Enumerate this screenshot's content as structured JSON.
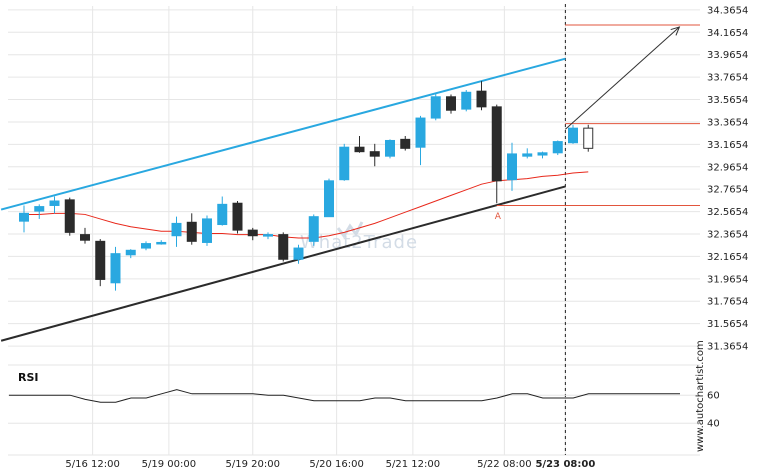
{
  "chart_data": {
    "type": "candlestick",
    "price_axis": {
      "ticks": [
        "34.3654",
        "34.1654",
        "33.9654",
        "33.7654",
        "33.5654",
        "33.3654",
        "33.1654",
        "32.9654",
        "32.7654",
        "32.5654",
        "32.3654",
        "32.1654",
        "31.9654",
        "31.7654",
        "31.5654",
        "31.3654"
      ],
      "ylim": [
        31.25,
        34.4
      ]
    },
    "time_axis": {
      "ticks": [
        "5/16 12:00",
        "5/19 00:00",
        "5/19 20:00",
        "5/20 16:00",
        "5/21 12:00",
        "5/22 08:00",
        "5/23 08:00"
      ],
      "current": "5/23 08:00"
    },
    "candles": [
      {
        "o": 32.48,
        "h": 32.62,
        "l": 32.38,
        "c": 32.55
      },
      {
        "o": 32.57,
        "h": 32.63,
        "l": 32.5,
        "c": 32.61
      },
      {
        "o": 32.62,
        "h": 32.7,
        "l": 32.55,
        "c": 32.66
      },
      {
        "o": 32.67,
        "h": 32.69,
        "l": 32.35,
        "c": 32.38
      },
      {
        "o": 32.36,
        "h": 32.42,
        "l": 32.28,
        "c": 32.31
      },
      {
        "o": 32.3,
        "h": 32.32,
        "l": 31.9,
        "c": 31.96
      },
      {
        "o": 31.93,
        "h": 32.25,
        "l": 31.86,
        "c": 32.19
      },
      {
        "o": 32.18,
        "h": 32.23,
        "l": 32.15,
        "c": 32.22
      },
      {
        "o": 32.24,
        "h": 32.3,
        "l": 32.22,
        "c": 32.28
      },
      {
        "o": 32.29,
        "h": 32.31,
        "l": 32.27,
        "c": 32.29
      },
      {
        "o": 32.35,
        "h": 32.52,
        "l": 32.25,
        "c": 32.46
      },
      {
        "o": 32.47,
        "h": 32.55,
        "l": 32.27,
        "c": 32.3
      },
      {
        "o": 32.29,
        "h": 32.53,
        "l": 32.26,
        "c": 32.5
      },
      {
        "o": 32.45,
        "h": 32.7,
        "l": 32.44,
        "c": 32.63
      },
      {
        "o": 32.64,
        "h": 32.66,
        "l": 32.37,
        "c": 32.4
      },
      {
        "o": 32.4,
        "h": 32.42,
        "l": 32.31,
        "c": 32.35
      },
      {
        "o": 32.35,
        "h": 32.38,
        "l": 32.32,
        "c": 32.36
      },
      {
        "o": 32.36,
        "h": 32.38,
        "l": 32.12,
        "c": 32.14
      },
      {
        "o": 32.14,
        "h": 32.27,
        "l": 32.1,
        "c": 32.24
      },
      {
        "o": 32.3,
        "h": 32.54,
        "l": 32.26,
        "c": 32.52
      },
      {
        "o": 32.52,
        "h": 32.86,
        "l": 32.52,
        "c": 32.84
      },
      {
        "o": 32.85,
        "h": 33.17,
        "l": 32.84,
        "c": 33.14
      },
      {
        "o": 33.14,
        "h": 33.24,
        "l": 33.09,
        "c": 33.1
      },
      {
        "o": 33.1,
        "h": 33.17,
        "l": 32.97,
        "c": 33.06
      },
      {
        "o": 33.06,
        "h": 33.21,
        "l": 33.04,
        "c": 33.2
      },
      {
        "o": 33.21,
        "h": 33.24,
        "l": 33.11,
        "c": 33.13
      },
      {
        "o": 33.14,
        "h": 33.42,
        "l": 32.98,
        "c": 33.4
      },
      {
        "o": 33.4,
        "h": 33.62,
        "l": 33.38,
        "c": 33.59
      },
      {
        "o": 33.59,
        "h": 33.61,
        "l": 33.44,
        "c": 33.47
      },
      {
        "o": 33.48,
        "h": 33.65,
        "l": 33.46,
        "c": 33.63
      },
      {
        "o": 33.64,
        "h": 33.73,
        "l": 33.47,
        "c": 33.5
      },
      {
        "o": 33.5,
        "h": 33.52,
        "l": 32.64,
        "c": 32.84
      },
      {
        "o": 32.85,
        "h": 33.18,
        "l": 32.75,
        "c": 33.08
      },
      {
        "o": 33.06,
        "h": 33.13,
        "l": 33.04,
        "c": 33.08
      },
      {
        "o": 33.07,
        "h": 33.1,
        "l": 33.04,
        "c": 33.09
      },
      {
        "o": 33.09,
        "h": 33.2,
        "l": 33.07,
        "c": 33.19
      },
      {
        "o": 33.18,
        "h": 33.34,
        "l": 33.17,
        "c": 33.31
      },
      {
        "o": 33.13,
        "h": 33.34,
        "l": 33.1,
        "c": 33.31
      }
    ],
    "moving_average": [
      32.54,
      32.54,
      32.55,
      32.55,
      32.54,
      32.5,
      32.46,
      32.43,
      32.41,
      32.39,
      32.39,
      32.38,
      32.37,
      32.37,
      32.36,
      32.36,
      32.36,
      32.34,
      32.33,
      32.33,
      32.35,
      32.38,
      32.42,
      32.46,
      32.51,
      32.56,
      32.61,
      32.66,
      32.71,
      32.76,
      32.81,
      32.84,
      32.85,
      32.86,
      32.88,
      32.89,
      32.91,
      32.92
    ],
    "channel": {
      "upper": {
        "from": {
          "i": -0.5,
          "v": 32.62
        },
        "to": {
          "i": 35.5,
          "v": 33.93
        }
      },
      "lower": {
        "from": {
          "i": -0.5,
          "v": 31.45
        },
        "to": {
          "i": 35.5,
          "v": 32.79
        }
      }
    },
    "levels": [
      {
        "value": 33.35,
        "color": "#e2553d"
      },
      {
        "value": 32.62,
        "color": "#e2553d"
      },
      {
        "value": 34.23,
        "color": "#e2553d"
      }
    ],
    "forecast_arrow": {
      "from": {
        "i": 35.5,
        "v": 33.3
      },
      "to": {
        "i": 43.5,
        "v": 34.23
      }
    },
    "marker": {
      "label": "A",
      "i": 31,
      "v": 32.58
    },
    "rsi": {
      "label": "RSI",
      "ticks": [
        "60",
        "40"
      ],
      "ylim": [
        28,
        78
      ],
      "values": [
        60,
        60,
        60,
        60,
        60,
        57,
        55,
        55,
        58,
        58,
        61,
        64,
        61,
        61,
        61,
        61,
        61,
        60,
        60,
        58,
        56,
        56,
        56,
        56,
        58,
        58,
        56,
        56,
        56,
        56,
        56,
        56,
        58,
        61,
        61,
        58,
        58,
        58,
        61,
        61,
        61,
        61,
        61,
        61,
        61
      ]
    },
    "colors": {
      "up": "#29a8e0",
      "down": "#2b2b2b",
      "upper_channel": "#29a8e0",
      "lower_channel": "#2b2b2b",
      "ma": "#e8281b",
      "levels": "#e2553d",
      "arrow": "#333333"
    }
  },
  "watermark": "What2Trade",
  "credit": "www.autochartist.com"
}
